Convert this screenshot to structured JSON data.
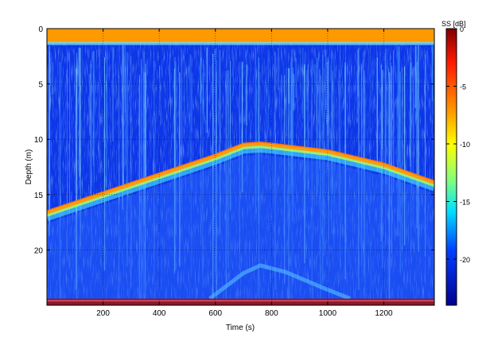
{
  "chart_data": {
    "type": "heatmap",
    "title": "",
    "xlabel": "Time (s)",
    "ylabel": "Depth (m)",
    "xlim": [
      0,
      1380
    ],
    "ylim": [
      0,
      25
    ],
    "x_ticks": [
      200,
      400,
      600,
      800,
      1000,
      1200
    ],
    "y_ticks": [
      0,
      5,
      10,
      15,
      20
    ],
    "y_reversed": true,
    "grid": true,
    "colorbar": {
      "label": "SS [dB]",
      "ticks": [
        0,
        -5,
        -10,
        -15,
        -20
      ],
      "range": [
        -24,
        0
      ],
      "colormap": "jet"
    },
    "surface_band_depth_m": [
      0,
      1.3
    ],
    "seabed_echo_line": {
      "x": [
        0,
        200,
        400,
        600,
        700,
        760,
        800,
        1000,
        1200,
        1380
      ],
      "depth_m": [
        16.6,
        14.9,
        13.2,
        11.5,
        10.5,
        10.4,
        10.5,
        11.1,
        12.3,
        13.9
      ]
    },
    "secondary_echo_line": {
      "x": [
        580,
        700,
        760,
        850,
        1000,
        1080
      ],
      "depth_m": [
        24.4,
        22.1,
        21.4,
        22.0,
        23.6,
        24.4
      ]
    },
    "bottom_band_depth_m": [
      24.4,
      25
    ]
  }
}
